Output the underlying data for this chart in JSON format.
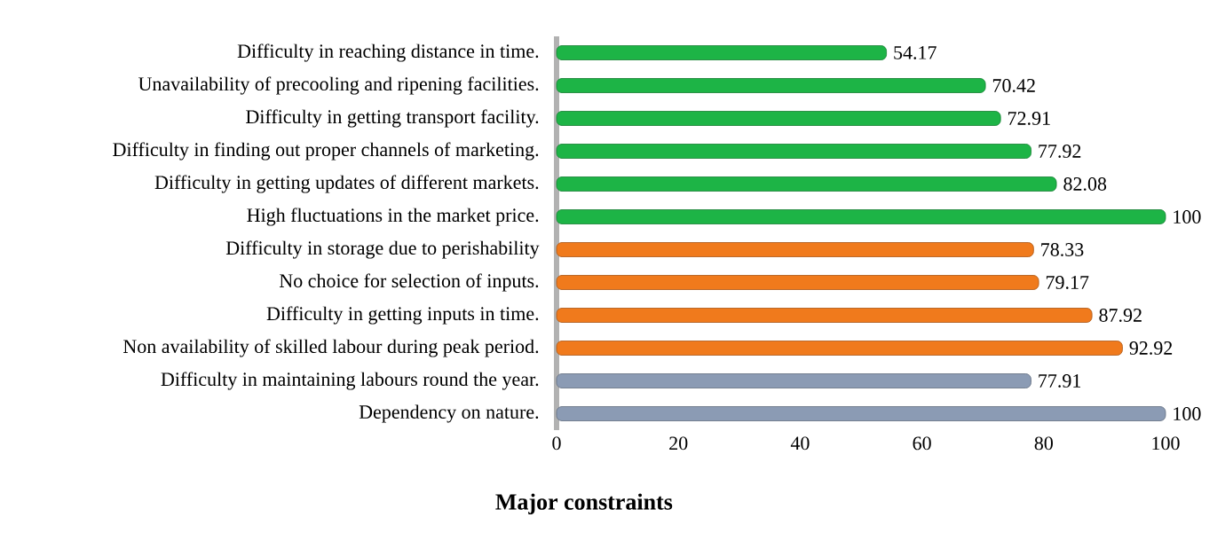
{
  "chart_data": {
    "type": "bar",
    "orientation": "horizontal",
    "xlabel": "Major constraints",
    "categories": [
      "Difficulty in reaching distance in time.",
      "Unavailability of precooling and ripening facilities.",
      "Difficulty in getting transport facility.",
      "Difficulty in finding out proper channels of marketing.",
      "Difficulty in getting updates of different markets.",
      "High fluctuations in the market price.",
      "Difficulty in storage due to perishability",
      "No choice for selection of inputs.",
      "Difficulty in getting inputs in time.",
      "Non availability of skilled labour during peak period.",
      "Difficulty in maintaining labours round the year.",
      "Dependency on nature."
    ],
    "values": [
      54.17,
      70.42,
      72.91,
      77.92,
      82.08,
      100,
      78.33,
      79.17,
      87.92,
      92.92,
      77.91,
      100
    ],
    "colors": [
      "#1db446",
      "#1db446",
      "#1db446",
      "#1db446",
      "#1db446",
      "#1db446",
      "#f07a1c",
      "#f07a1c",
      "#f07a1c",
      "#f07a1c",
      "#8b9bb4",
      "#8b9bb4"
    ],
    "xlim": [
      0,
      100
    ],
    "xticks": [
      0,
      20,
      40,
      60,
      80,
      100
    ],
    "data_labels": true
  }
}
